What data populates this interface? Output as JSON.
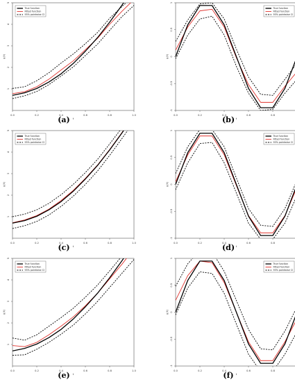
{
  "colors": {
    "true_function": "#000000",
    "fitted_function": "#e0322d",
    "interval": "#000000"
  },
  "legend_entries": [
    "True function",
    "Fitted function",
    "95% pointwise CI"
  ],
  "chart_data": [
    {
      "type": "line",
      "caption": "(a)",
      "xlabel": "t",
      "ylabel": "g(t)",
      "xlim": [
        0.0,
        1.0
      ],
      "ylim": [
        0.0,
        5.0
      ],
      "xticks": [
        "0.0",
        "0.2",
        "0.4",
        "0.6",
        "0.8",
        "1.0"
      ],
      "yticks": [
        "1",
        "2",
        "3",
        "4",
        "5"
      ],
      "legend": "top-left",
      "x": [
        0.0,
        0.1,
        0.2,
        0.3,
        0.4,
        0.5,
        0.6,
        0.7,
        0.8,
        0.9,
        1.0
      ],
      "series": [
        {
          "name": "True function",
          "values": [
            0.7,
            0.82,
            1.02,
            1.32,
            1.7,
            2.18,
            2.75,
            3.38,
            4.1,
            4.88,
            5.7
          ]
        },
        {
          "name": "Fitted function",
          "values": [
            0.78,
            0.87,
            1.1,
            1.45,
            1.88,
            2.3,
            2.82,
            3.35,
            4.0,
            4.6,
            5.15
          ]
        },
        {
          "name": "95% pointwise CI",
          "values": [
            1.02,
            1.1,
            1.38,
            1.75,
            2.2,
            2.62,
            3.1,
            3.62,
            4.28,
            4.82,
            5.32
          ]
        },
        {
          "name": "95% pointwise CI",
          "values": [
            0.55,
            0.68,
            0.88,
            1.2,
            1.6,
            2.02,
            2.55,
            3.08,
            3.72,
            4.35,
            4.88
          ]
        }
      ]
    },
    {
      "type": "line",
      "caption": "(b)",
      "xlabel": "t",
      "ylabel": "g(t)",
      "xlim": [
        0.0,
        1.0
      ],
      "ylim": [
        -1.0,
        1.0
      ],
      "xticks": [
        "0.0",
        "0.2",
        "0.4",
        "0.6",
        "0.8",
        "1.0"
      ],
      "yticks": [
        "-1",
        "-0.5",
        "0",
        "0.5",
        "1"
      ],
      "legend": "top-right",
      "x": [
        0.0,
        0.1,
        0.2,
        0.3,
        0.4,
        0.5,
        0.6,
        0.7,
        0.8,
        0.9,
        1.0
      ],
      "series": [
        {
          "name": "True function",
          "values": [
            0.0,
            0.59,
            0.95,
            0.95,
            0.59,
            0.0,
            -0.59,
            -0.95,
            -0.95,
            -0.59,
            0.0
          ]
        },
        {
          "name": "Fitted function",
          "values": [
            0.12,
            0.55,
            0.85,
            0.88,
            0.55,
            -0.02,
            -0.52,
            -0.85,
            -0.85,
            -0.55,
            -0.28
          ]
        },
        {
          "name": "95% pointwise CI",
          "values": [
            0.28,
            0.68,
            0.98,
            1.0,
            0.7,
            0.14,
            -0.38,
            -0.7,
            -0.72,
            -0.42,
            -0.12
          ]
        },
        {
          "name": "95% pointwise CI",
          "values": [
            -0.04,
            0.4,
            0.7,
            0.75,
            0.4,
            -0.18,
            -0.68,
            -1.0,
            -0.98,
            -0.68,
            -0.42
          ]
        }
      ]
    },
    {
      "type": "line",
      "caption": "(c)",
      "xlabel": "t",
      "ylabel": "g(t)",
      "xlim": [
        0.0,
        1.0
      ],
      "ylim": [
        0.0,
        5.0
      ],
      "xticks": [
        "0.0",
        "0.2",
        "0.4",
        "0.6",
        "0.8",
        "1.0"
      ],
      "yticks": [
        "1",
        "2",
        "3",
        "4",
        "5"
      ],
      "legend": "top-left",
      "x": [
        0.0,
        0.1,
        0.2,
        0.3,
        0.4,
        0.5,
        0.6,
        0.7,
        0.8,
        0.9,
        1.0
      ],
      "series": [
        {
          "name": "True function",
          "values": [
            0.7,
            0.82,
            1.02,
            1.32,
            1.7,
            2.18,
            2.75,
            3.38,
            4.1,
            4.88,
            5.7
          ]
        },
        {
          "name": "Fitted function",
          "values": [
            0.72,
            0.85,
            1.05,
            1.35,
            1.75,
            2.22,
            2.78,
            3.4,
            4.12,
            4.9,
            5.68
          ]
        },
        {
          "name": "95% pointwise CI",
          "values": [
            1.0,
            1.12,
            1.32,
            1.62,
            2.02,
            2.5,
            3.05,
            3.66,
            4.38,
            5.12,
            5.9
          ]
        },
        {
          "name": "95% pointwise CI",
          "values": [
            0.45,
            0.58,
            0.78,
            1.08,
            1.48,
            1.95,
            2.5,
            3.12,
            3.85,
            4.62,
            5.42
          ]
        }
      ]
    },
    {
      "type": "line",
      "caption": "(d)",
      "xlabel": "t",
      "ylabel": "g(t)",
      "xlim": [
        0.0,
        1.0
      ],
      "ylim": [
        -1.0,
        1.0
      ],
      "xticks": [
        "0.0",
        "0.2",
        "0.4",
        "0.6",
        "0.8",
        "1.0"
      ],
      "yticks": [
        "-1",
        "-0.5",
        "0",
        "0.5",
        "1"
      ],
      "legend": "top-right",
      "x": [
        0.0,
        0.1,
        0.2,
        0.3,
        0.4,
        0.5,
        0.6,
        0.7,
        0.8,
        0.9,
        1.0
      ],
      "series": [
        {
          "name": "True function",
          "values": [
            0.0,
            0.59,
            0.95,
            0.95,
            0.59,
            0.0,
            -0.59,
            -0.95,
            -0.95,
            -0.59,
            0.0
          ]
        },
        {
          "name": "Fitted function",
          "values": [
            0.05,
            0.55,
            0.9,
            0.9,
            0.55,
            -0.02,
            -0.58,
            -0.9,
            -0.9,
            -0.58,
            -0.05
          ]
        },
        {
          "name": "95% pointwise CI",
          "values": [
            0.2,
            0.7,
            1.02,
            1.02,
            0.7,
            0.12,
            -0.45,
            -0.76,
            -0.78,
            -0.45,
            0.08
          ]
        },
        {
          "name": "95% pointwise CI",
          "values": [
            -0.1,
            0.4,
            0.76,
            0.78,
            0.4,
            -0.16,
            -0.72,
            -1.02,
            -1.02,
            -0.72,
            -0.2
          ]
        }
      ]
    },
    {
      "type": "line",
      "caption": "(e)",
      "xlabel": "t",
      "ylabel": "g(t)",
      "xlim": [
        0.0,
        1.0
      ],
      "ylim": [
        0.0,
        5.0
      ],
      "xticks": [
        "0.0",
        "0.2",
        "0.4",
        "0.6",
        "0.8",
        "1.0"
      ],
      "yticks": [
        "1",
        "2",
        "3",
        "4",
        "5"
      ],
      "legend": "top-left",
      "x": [
        0.0,
        0.1,
        0.2,
        0.3,
        0.4,
        0.5,
        0.6,
        0.7,
        0.8,
        0.9,
        1.0
      ],
      "series": [
        {
          "name": "True function",
          "values": [
            0.7,
            0.82,
            1.02,
            1.32,
            1.7,
            2.18,
            2.75,
            3.38,
            4.1,
            4.88,
            5.7
          ]
        },
        {
          "name": "Fitted function",
          "values": [
            0.95,
            0.9,
            1.1,
            1.45,
            1.85,
            2.28,
            2.8,
            3.38,
            4.05,
            4.72,
            5.45
          ]
        },
        {
          "name": "95% pointwise CI",
          "values": [
            1.3,
            1.2,
            1.45,
            1.85,
            2.25,
            2.68,
            3.2,
            3.76,
            4.42,
            5.1,
            5.75
          ]
        },
        {
          "name": "95% pointwise CI",
          "values": [
            0.5,
            0.52,
            0.78,
            1.1,
            1.48,
            1.9,
            2.42,
            3.0,
            3.65,
            4.3,
            4.95
          ]
        }
      ]
    },
    {
      "type": "line",
      "caption": "(f)",
      "xlabel": "t",
      "ylabel": "g(t)",
      "xlim": [
        0.0,
        1.0
      ],
      "ylim": [
        -1.0,
        1.0
      ],
      "xticks": [
        "0.0",
        "0.2",
        "0.4",
        "0.6",
        "0.8",
        "1.0"
      ],
      "yticks": [
        "-1",
        "-0.5",
        "0",
        "0.5",
        "1"
      ],
      "legend": "top-right",
      "x": [
        0.0,
        0.1,
        0.2,
        0.3,
        0.4,
        0.5,
        0.6,
        0.7,
        0.8,
        0.9,
        1.0
      ],
      "series": [
        {
          "name": "True function",
          "values": [
            0.0,
            0.59,
            0.95,
            0.95,
            0.59,
            0.0,
            -0.59,
            -0.95,
            -0.95,
            -0.59,
            0.0
          ]
        },
        {
          "name": "Fitted function",
          "values": [
            0.22,
            0.68,
            0.95,
            0.92,
            0.55,
            0.0,
            -0.55,
            -0.9,
            -0.9,
            -0.55,
            -0.12
          ]
        },
        {
          "name": "95% pointwise CI",
          "values": [
            0.48,
            0.9,
            1.15,
            1.12,
            0.76,
            0.22,
            -0.32,
            -0.68,
            -0.7,
            -0.35,
            0.1
          ]
        },
        {
          "name": "95% pointwise CI",
          "values": [
            -0.05,
            0.45,
            0.75,
            0.72,
            0.35,
            -0.22,
            -0.78,
            -1.1,
            -1.1,
            -0.78,
            -0.36
          ]
        }
      ]
    }
  ]
}
